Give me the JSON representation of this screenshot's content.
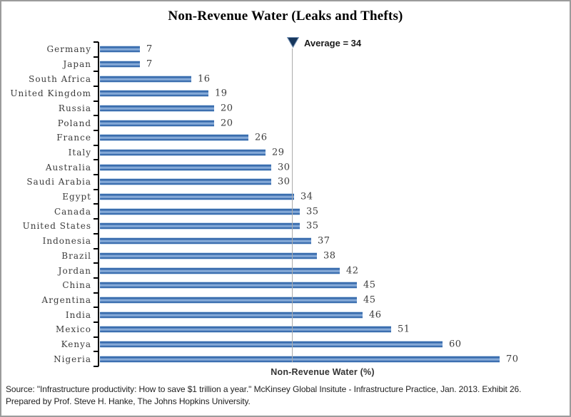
{
  "title": "Non-Revenue Water (Leaks and Thefts)",
  "average_label": "Average = 34",
  "xlabel": "Non-Revenue Water (%)",
  "source": {
    "line1": "Source: \"Infrastructure productivity: How to save $1 trillion a year.\" McKinsey Global Insitute - Infrastructure Practice, Jan. 2013. Exhibit 26.",
    "line2": "Prepared by Prof. Steve H. Hanke, The Johns Hopkins University."
  },
  "colors": {
    "bar_dark": "#3a6dae",
    "bar_mid": "#87abd9",
    "bar_highlight": "#c7d9ec",
    "average_marker_fill": "#17375d",
    "average_marker_stroke": "#7a96b8",
    "average_line": "#ababab",
    "axis": "#000000",
    "frame_border": "#9b9b9b"
  },
  "chart_data": {
    "type": "bar",
    "orientation": "horizontal",
    "title": "Non-Revenue Water (Leaks and Thefts)",
    "xlabel": "Non-Revenue Water (%)",
    "xlim": [
      0,
      75
    ],
    "grid": false,
    "legend": false,
    "average": 34,
    "average_annotation": "Average = 34",
    "categories": [
      "Germany",
      "Japan",
      "South Africa",
      "United Kingdom",
      "Russia",
      "Poland",
      "France",
      "Italy",
      "Australia",
      "Saudi Arabia",
      "Egypt",
      "Canada",
      "United States",
      "Indonesia",
      "Brazil",
      "Jordan",
      "China",
      "Argentina",
      "India",
      "Mexico",
      "Kenya",
      "Nigeria"
    ],
    "values": [
      7,
      7,
      16,
      19,
      20,
      20,
      26,
      29,
      30,
      30,
      34,
      35,
      35,
      37,
      38,
      42,
      45,
      45,
      46,
      51,
      60,
      70
    ]
  }
}
